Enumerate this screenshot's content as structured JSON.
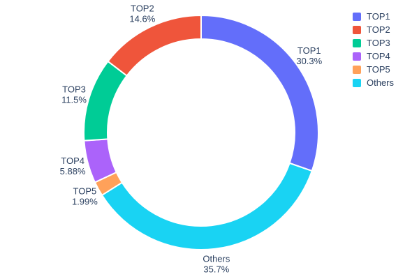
{
  "chart_data": {
    "type": "pie",
    "subtype": "donut",
    "title": "",
    "hole_ratio": 0.8,
    "labels": [
      "TOP1",
      "TOP2",
      "TOP3",
      "TOP4",
      "TOP5",
      "Others"
    ],
    "values": [
      30.3,
      14.6,
      11.5,
      5.88,
      1.99,
      35.7
    ],
    "value_labels": [
      "30.3%",
      "14.6%",
      "11.5%",
      "5.88%",
      "1.99%",
      "35.7%"
    ],
    "colors": [
      "#636efa",
      "#ef553b",
      "#00cc96",
      "#ab63fa",
      "#ffa15a",
      "#19d3f3"
    ],
    "text_color": "#2a3f5f",
    "start_angle_deg": 0,
    "direction": "clockwise",
    "draw_order": [
      "TOP1",
      "Others",
      "TOP5",
      "TOP4",
      "TOP3",
      "TOP2"
    ],
    "labels_position": "outside",
    "legend": {
      "position": "right",
      "items": [
        "TOP1",
        "TOP2",
        "TOP3",
        "TOP4",
        "TOP5",
        "Others"
      ]
    }
  }
}
